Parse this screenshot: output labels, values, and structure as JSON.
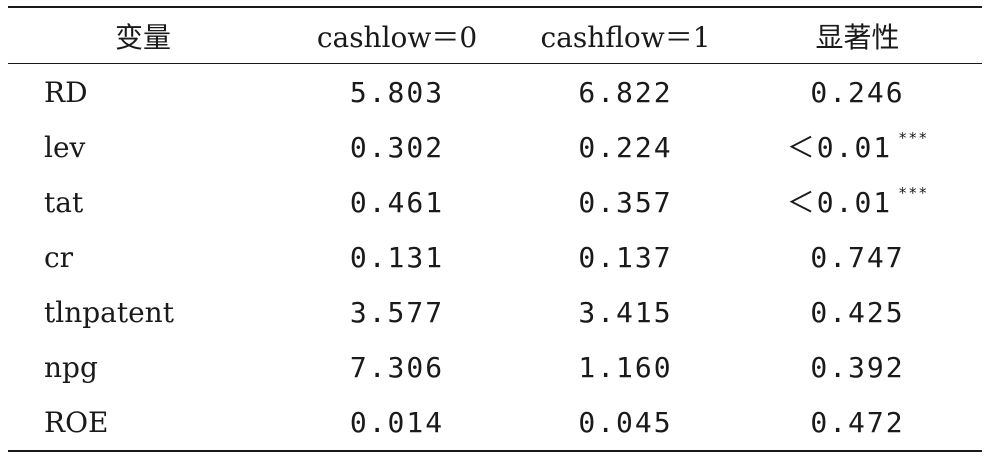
{
  "table": {
    "headers": [
      "变量",
      "cashlow＝0",
      "cashflow＝1",
      "显著性"
    ],
    "rows": [
      {
        "var": "RD",
        "v0": "5.803",
        "v1": "6.822",
        "sig": "0.246",
        "stars": ""
      },
      {
        "var": "lev",
        "v0": "0.302",
        "v1": "0.224",
        "sig": "＜0.01",
        "stars": "***"
      },
      {
        "var": "tat",
        "v0": "0.461",
        "v1": "0.357",
        "sig": "＜0.01",
        "stars": "***"
      },
      {
        "var": "cr",
        "v0": "0.131",
        "v1": "0.137",
        "sig": "0.747",
        "stars": ""
      },
      {
        "var": "tlnpatent",
        "v0": "3.577",
        "v1": "3.415",
        "sig": "0.425",
        "stars": ""
      },
      {
        "var": "npg",
        "v0": "7.306",
        "v1": "1.160",
        "sig": "0.392",
        "stars": ""
      },
      {
        "var": "ROE",
        "v0": "0.014",
        "v1": "0.045",
        "sig": "0.472",
        "stars": ""
      }
    ]
  }
}
